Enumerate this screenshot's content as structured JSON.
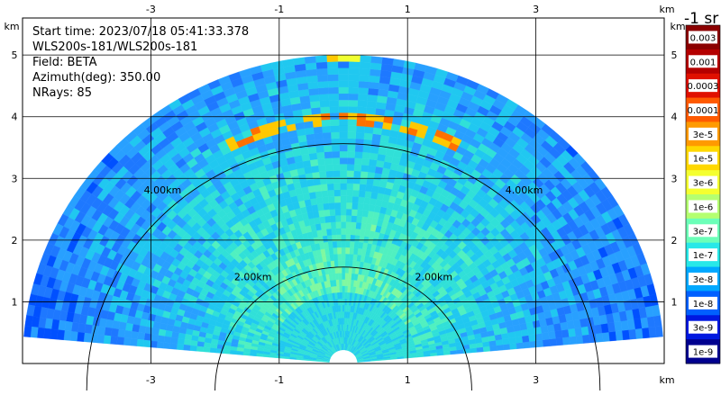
{
  "info": {
    "start_time": "Start time: 2023/07/18 05:41:33.378",
    "instrument": "WLS200s-181/WLS200s-181",
    "field": "Field: BETA",
    "azimuth": "Azimuth(deg): 350.00",
    "nrays": "NRays: 85"
  },
  "colorbar": {
    "title": "-1 sr",
    "labels": [
      "0.003",
      "0.001",
      "0.0003",
      "0.0001",
      "3e-5",
      "1e-5",
      "3e-6",
      "1e-6",
      "3e-7",
      "1e-7",
      "3e-8",
      "1e-8",
      "3e-9",
      "1e-9"
    ],
    "colors": [
      "#8b0000",
      "#b40000",
      "#e01000",
      "#ff5a00",
      "#ff9a00",
      "#ffd800",
      "#f4ff30",
      "#b4ff70",
      "#6cffb8",
      "#28e8e8",
      "#00a8ff",
      "#0060ff",
      "#0018e0",
      "#00008f"
    ]
  },
  "chart_data": {
    "type": "heatmap",
    "projection": "RHI (range-height) sector",
    "xlim": [
      -5.0,
      5.0
    ],
    "ylim": [
      0.0,
      5.6
    ],
    "x_ticks": [
      "-3",
      "-1",
      "1",
      "3"
    ],
    "y_ticks": [
      "1",
      "2",
      "3",
      "4",
      "5"
    ],
    "unit_label": "km",
    "range_rings": [
      {
        "radius_km": 2.0,
        "label": "2.00km"
      },
      {
        "radius_km": 4.0,
        "label": "4.00km"
      }
    ],
    "max_range_km": 5.0,
    "elevation_deg": [
      5,
      175
    ],
    "field": "BETA",
    "colorbar_title": "-1 sr"
  }
}
